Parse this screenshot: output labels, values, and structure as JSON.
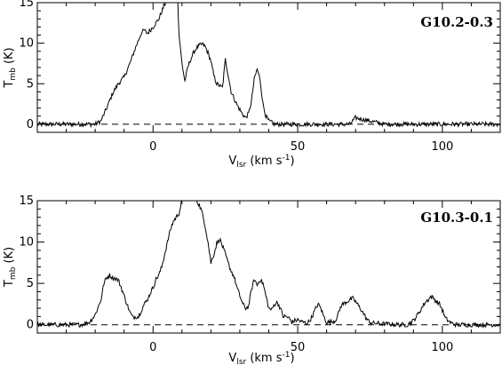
{
  "chart_data": [
    {
      "type": "line",
      "title": "G10.2-0.3",
      "xlabel": "V",
      "xlabel_sub": "lsr",
      "xlabel_unit": " (km s",
      "xlabel_sup": "-1",
      "xlabel_close": ")",
      "ylabel": "T",
      "ylabel_sub": "mb",
      "ylabel_unit": " (K)",
      "xlim": [
        -40,
        120
      ],
      "ylim": [
        -1,
        15
      ],
      "xticks": [
        0,
        50,
        100
      ],
      "yticks": [
        0,
        5,
        10,
        15
      ],
      "reference_line": {
        "y": 0,
        "style": "dashed"
      },
      "series": [
        {
          "x": [
            -40,
            -30,
            -25,
            -20,
            -18,
            -16,
            -14,
            -12,
            -10,
            -8,
            -6,
            -4,
            -3,
            -2,
            0,
            2,
            4,
            4.5,
            8.5,
            9,
            10,
            11,
            12,
            13,
            14,
            15,
            16,
            17,
            18,
            19,
            20,
            21,
            22,
            24,
            25,
            26,
            27,
            28,
            29,
            30,
            31,
            32,
            33,
            34,
            35,
            36,
            37,
            38,
            39,
            40,
            42,
            50,
            60,
            68,
            70,
            80,
            90,
            100,
            110,
            120
          ],
          "y": [
            0,
            0,
            0,
            0,
            0.4,
            2.0,
            3.8,
            5.0,
            5.8,
            7.5,
            9.5,
            11.3,
            11.6,
            11.2,
            12.0,
            13.0,
            14.8,
            15.0,
            15.0,
            11.0,
            7.5,
            5.3,
            7.0,
            8.0,
            8.8,
            9.4,
            9.7,
            9.9,
            9.6,
            8.8,
            7.8,
            6.0,
            5.0,
            4.5,
            8.0,
            6.0,
            4.0,
            3.2,
            2.4,
            1.8,
            1.2,
            0.8,
            1.3,
            2.8,
            5.6,
            6.8,
            5.5,
            2.5,
            1.0,
            0.4,
            0,
            0,
            0,
            0,
            0.8,
            0,
            0,
            0,
            0,
            0
          ]
        }
      ]
    },
    {
      "type": "line",
      "title": "G10.3-0.1",
      "xlabel": "V",
      "xlabel_sub": "lsr",
      "xlabel_unit": " (km s",
      "xlabel_sup": "-1",
      "xlabel_close": ")",
      "ylabel": "T",
      "ylabel_sub": "mb",
      "ylabel_unit": " (K)",
      "xlim": [
        -40,
        120
      ],
      "ylim": [
        -1,
        15
      ],
      "xticks": [
        0,
        50,
        100
      ],
      "yticks": [
        0,
        5,
        10,
        15
      ],
      "reference_line": {
        "y": 0,
        "style": "dashed"
      },
      "series": [
        {
          "x": [
            -40,
            -30,
            -25,
            -22,
            -20,
            -18,
            -17,
            -16,
            -15,
            -14,
            -13,
            -12,
            -11,
            -10,
            -9,
            -8,
            -7,
            -6,
            -5,
            -4,
            -3,
            -2,
            -1,
            0,
            1,
            2,
            3,
            4,
            5,
            6,
            7,
            8,
            9,
            10,
            11,
            15,
            16,
            17,
            18,
            19,
            20,
            21,
            22,
            23,
            24,
            25,
            26,
            27,
            28,
            29,
            30,
            31,
            32,
            33,
            34,
            35,
            36,
            37,
            38,
            39,
            40,
            41,
            42,
            43,
            44,
            45,
            46,
            47,
            48,
            49,
            50,
            51,
            52,
            53,
            54,
            55,
            56,
            57,
            58,
            59,
            60,
            61,
            62,
            63,
            64,
            65,
            66,
            67,
            68,
            69,
            70,
            71,
            72,
            73,
            74,
            75,
            76,
            80,
            85,
            88,
            90,
            92,
            94,
            95,
            96,
            97,
            98,
            99,
            100,
            101,
            103,
            105,
            110,
            115,
            120
          ],
          "y": [
            0,
            0,
            0,
            0.3,
            1.2,
            3.0,
            5.0,
            5.7,
            6.0,
            5.7,
            5.6,
            5.4,
            4.5,
            3.5,
            2.5,
            1.5,
            0.9,
            1.0,
            1.0,
            1.8,
            2.5,
            3.0,
            3.8,
            4.5,
            5.5,
            6.0,
            7.0,
            8.5,
            10.0,
            11.5,
            12.5,
            13.0,
            13.5,
            15.0,
            15.0,
            15.0,
            14.5,
            13.5,
            12.0,
            10.0,
            7.5,
            8.5,
            9.8,
            10.4,
            9.5,
            8.5,
            7.4,
            6.5,
            5.8,
            4.5,
            3.5,
            2.5,
            2.0,
            2.2,
            4.2,
            5.5,
            4.8,
            5.5,
            5.0,
            3.5,
            2.0,
            1.8,
            2.5,
            2.7,
            2.0,
            1.0,
            1.0,
            0.8,
            0.3,
            0.5,
            0.6,
            0.4,
            0.3,
            0.2,
            0.4,
            1.0,
            1.8,
            2.5,
            2.0,
            1.0,
            0.3,
            0.3,
            0.4,
            0.5,
            1.3,
            2.3,
            2.6,
            2.8,
            3.0,
            3.2,
            2.8,
            2.3,
            1.8,
            1.2,
            0.6,
            0.3,
            0.2,
            0.1,
            0,
            0,
            0.5,
            1.5,
            2.7,
            3.0,
            3.4,
            3.2,
            2.8,
            2.5,
            1.8,
            0.8,
            0.2,
            0,
            0,
            0,
            0
          ]
        }
      ]
    }
  ]
}
